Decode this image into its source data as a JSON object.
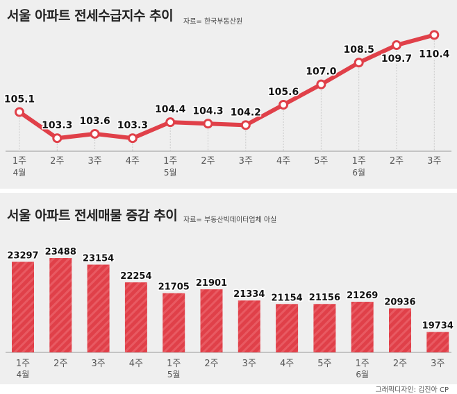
{
  "credit": "그래픽디자인: 김진아 CP",
  "chart_data": [
    {
      "type": "line",
      "title": "서울 아파트 전세수급지수 추이",
      "source": "자료= 한국부동산원",
      "categories": [
        "1주",
        "2주",
        "3주",
        "4주",
        "1주",
        "2주",
        "3주",
        "4주",
        "5주",
        "1주",
        "2주",
        "3주"
      ],
      "months": [
        {
          "index": 0,
          "label": "4월"
        },
        {
          "index": 4,
          "label": "5월"
        },
        {
          "index": 9,
          "label": "6월"
        }
      ],
      "series": [
        {
          "values": [
            105.1,
            103.3,
            103.6,
            103.3,
            104.4,
            104.3,
            104.2,
            105.6,
            107.0,
            108.5,
            109.7,
            110.4
          ]
        }
      ],
      "labels": [
        "105.1",
        "103.3",
        "103.6",
        "103.3",
        "104.4",
        "104.3",
        "104.2",
        "105.6",
        "107.0",
        "108.5",
        "109.7",
        "110.4"
      ],
      "ylim": [
        102.5,
        110.8
      ],
      "colors": {
        "line": "#e04049"
      }
    },
    {
      "type": "bar",
      "title": "서울 아파트 전세매물 증감 추이",
      "source": "자료= 부동산빅데이터업체 아실",
      "categories": [
        "1주",
        "2주",
        "3주",
        "4주",
        "1주",
        "2주",
        "3주",
        "4주",
        "5주",
        "1주",
        "2주",
        "3주"
      ],
      "months": [
        {
          "index": 0,
          "label": "4월"
        },
        {
          "index": 4,
          "label": "5월"
        },
        {
          "index": 9,
          "label": "6월"
        }
      ],
      "series": [
        {
          "values": [
            23297,
            23488,
            23154,
            22254,
            21705,
            21901,
            21334,
            21154,
            21156,
            21269,
            20936,
            19734
          ]
        }
      ],
      "ylim": [
        18700,
        23700
      ],
      "colors": {
        "bar": "#e04049"
      }
    }
  ]
}
